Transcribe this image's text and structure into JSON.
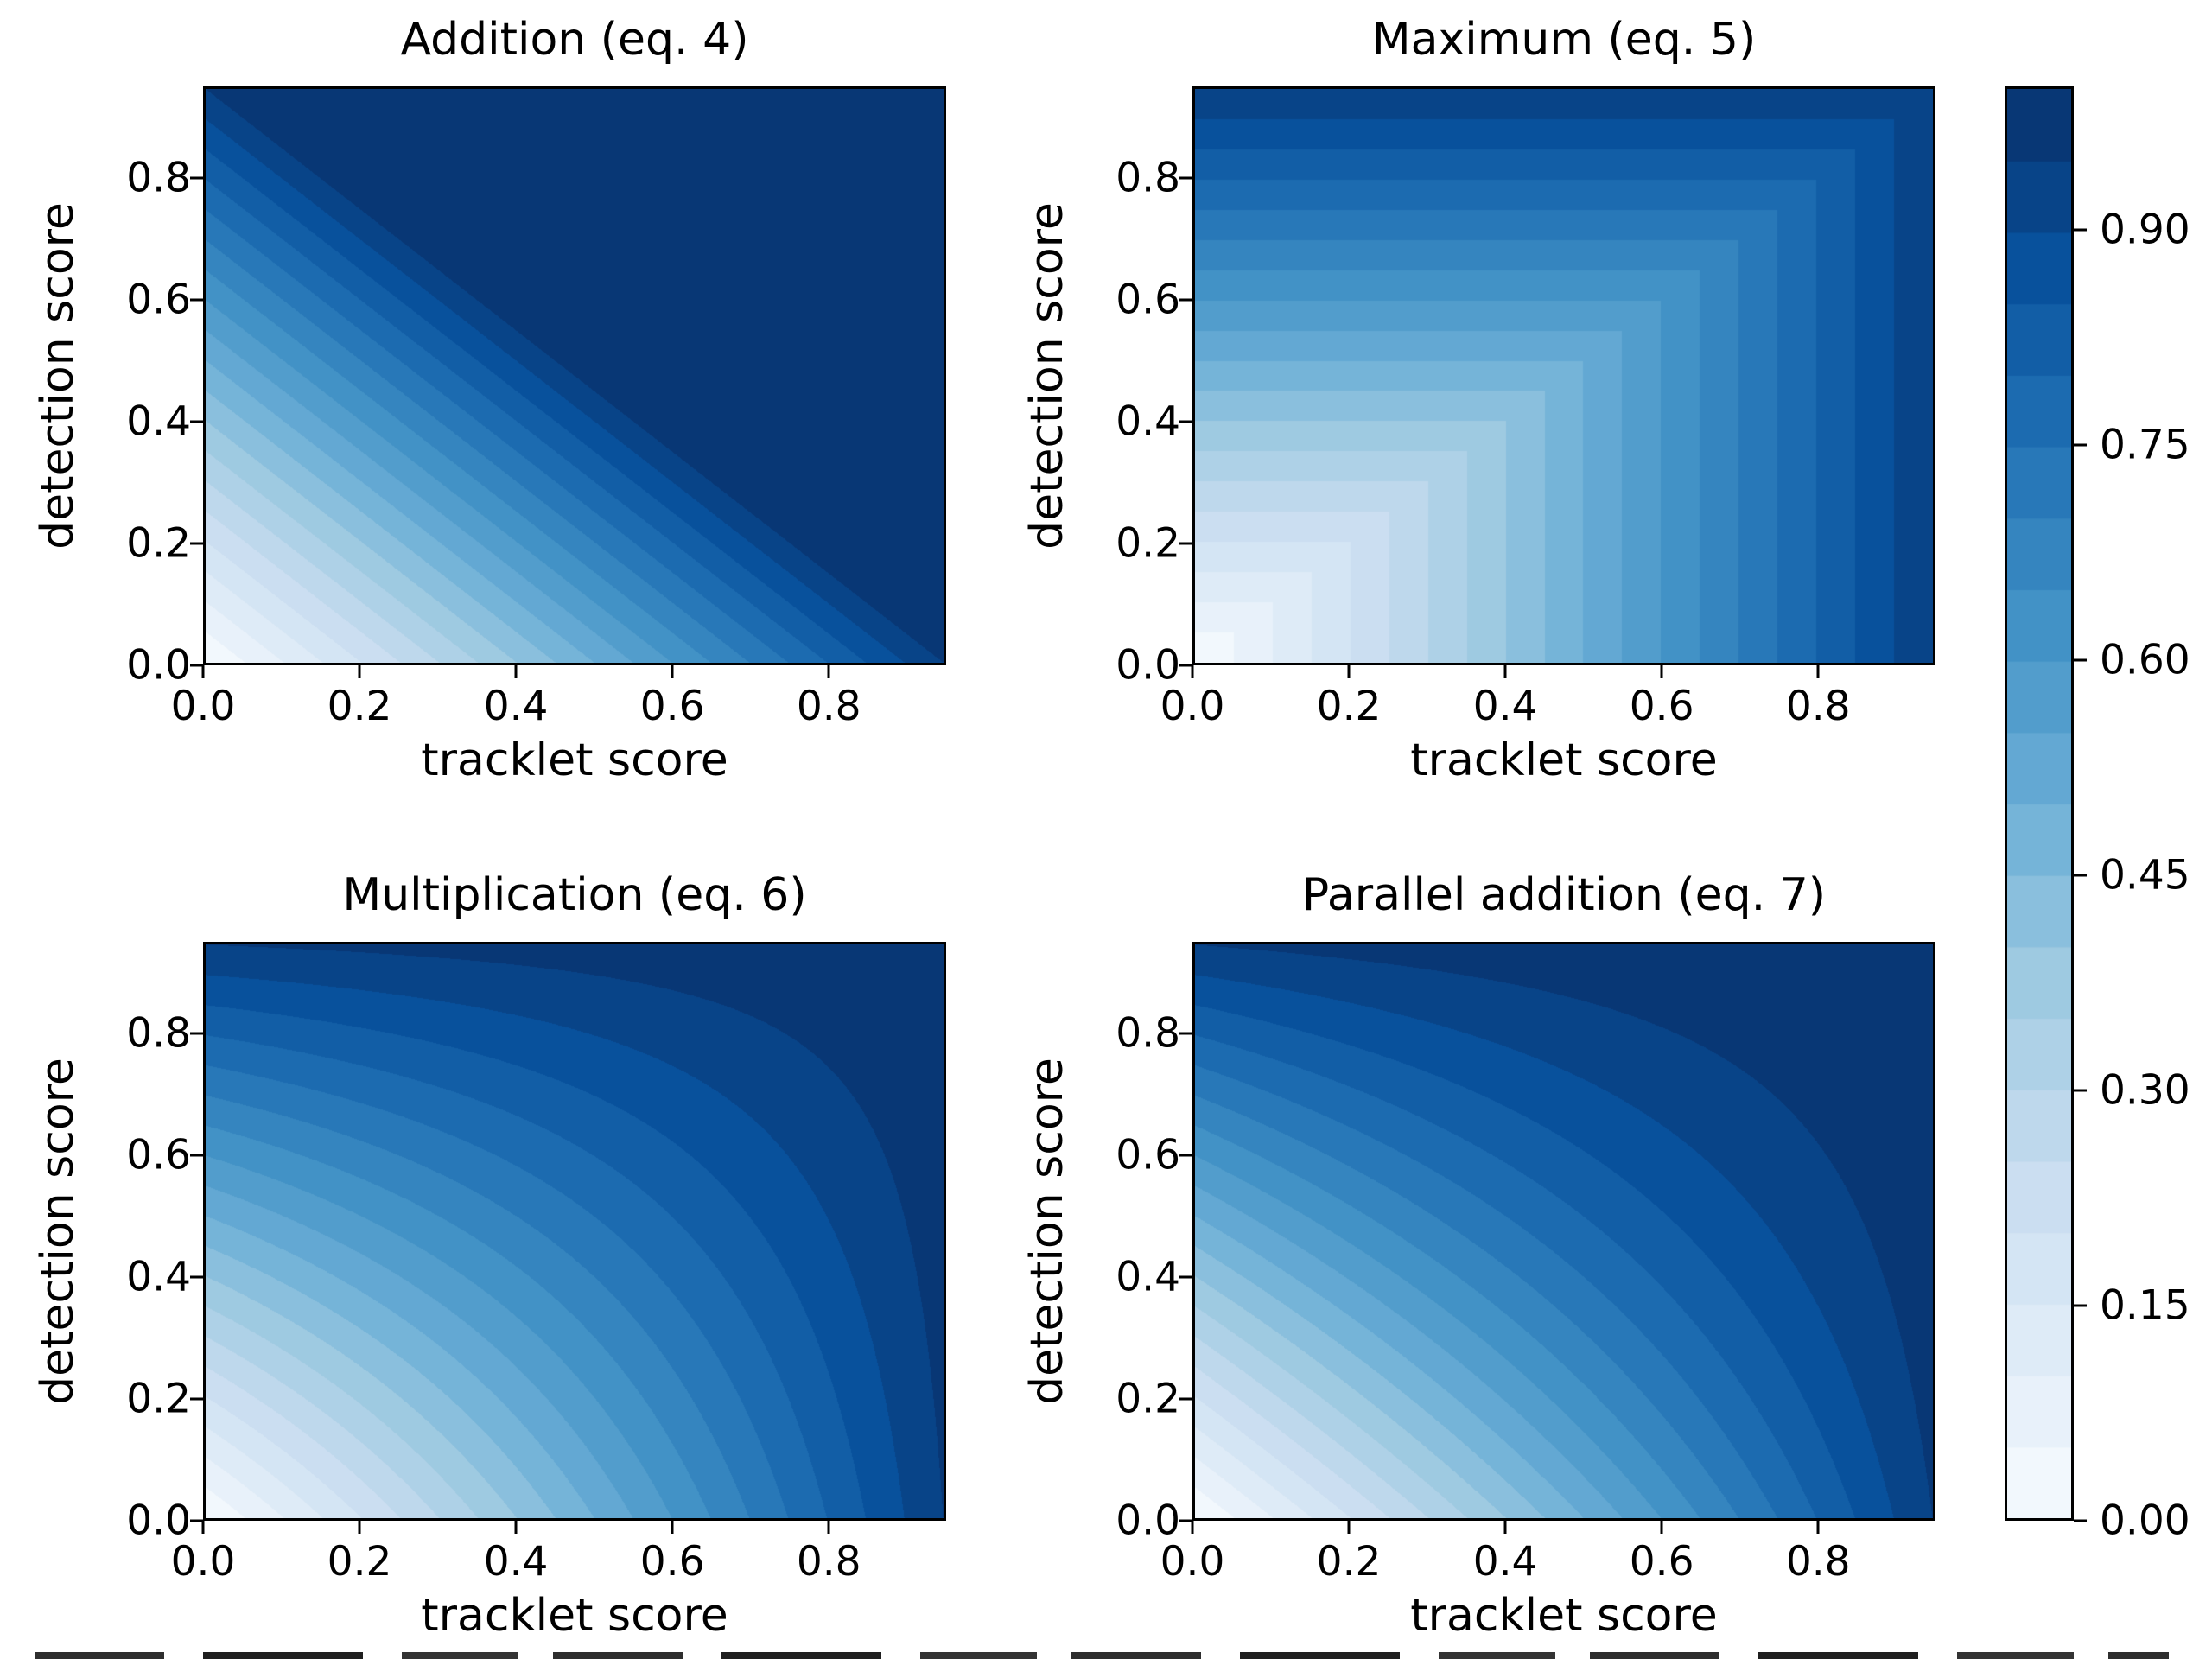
{
  "figure": {
    "background": "#ffffff",
    "axis_color": "#000000",
    "text_color": "#000000",
    "colormap": "Blues",
    "colormap_stops": [
      "#f7fbff",
      "#deebf7",
      "#c6dbef",
      "#9ecae1",
      "#6baed6",
      "#4292c6",
      "#2171b5",
      "#08519c",
      "#08306b"
    ],
    "contour_levels": {
      "min": 0,
      "max": 1,
      "step": 0.05
    }
  },
  "chart_data": [
    {
      "type": "heatmap",
      "subtype": "filled-contour",
      "title": "Addition (eq. 4)",
      "op": "addition",
      "formula": "score = min(1, tracklet + detection)",
      "xlabel": "tracklet score",
      "ylabel": "detection score",
      "x_range": [
        0,
        0.95
      ],
      "y_range": [
        0,
        0.95
      ],
      "grid": false,
      "xticks": [
        {
          "value": 0.0,
          "label": "0.0"
        },
        {
          "value": 0.2,
          "label": "0.2"
        },
        {
          "value": 0.4,
          "label": "0.4"
        },
        {
          "value": 0.6,
          "label": "0.6"
        },
        {
          "value": 0.8,
          "label": "0.8"
        }
      ],
      "yticks": [
        {
          "value": 0.0,
          "label": "0.0"
        },
        {
          "value": 0.2,
          "label": "0.2"
        },
        {
          "value": 0.4,
          "label": "0.4"
        },
        {
          "value": 0.6,
          "label": "0.6"
        },
        {
          "value": 0.8,
          "label": "0.8"
        }
      ]
    },
    {
      "type": "heatmap",
      "subtype": "filled-contour",
      "title": "Maximum (eq. 5)",
      "op": "maximum",
      "formula": "score = max(tracklet, detection)",
      "xlabel": "tracklet score",
      "ylabel": "detection score",
      "x_range": [
        0,
        0.95
      ],
      "y_range": [
        0,
        0.95
      ],
      "grid": false,
      "xticks": [
        {
          "value": 0.0,
          "label": "0.0"
        },
        {
          "value": 0.2,
          "label": "0.2"
        },
        {
          "value": 0.4,
          "label": "0.4"
        },
        {
          "value": 0.6,
          "label": "0.6"
        },
        {
          "value": 0.8,
          "label": "0.8"
        }
      ],
      "yticks": [
        {
          "value": 0.0,
          "label": "0.0"
        },
        {
          "value": 0.2,
          "label": "0.2"
        },
        {
          "value": 0.4,
          "label": "0.4"
        },
        {
          "value": 0.6,
          "label": "0.6"
        },
        {
          "value": 0.8,
          "label": "0.8"
        }
      ]
    },
    {
      "type": "heatmap",
      "subtype": "filled-contour",
      "title": "Multiplication (eq. 6)",
      "op": "multiplication",
      "formula": "score = 1 - (1 - tracklet)(1 - detection)",
      "xlabel": "tracklet score",
      "ylabel": "detection score",
      "x_range": [
        0,
        0.95
      ],
      "y_range": [
        0,
        0.95
      ],
      "grid": false,
      "xticks": [
        {
          "value": 0.0,
          "label": "0.0"
        },
        {
          "value": 0.2,
          "label": "0.2"
        },
        {
          "value": 0.4,
          "label": "0.4"
        },
        {
          "value": 0.6,
          "label": "0.6"
        },
        {
          "value": 0.8,
          "label": "0.8"
        }
      ],
      "yticks": [
        {
          "value": 0.0,
          "label": "0.0"
        },
        {
          "value": 0.2,
          "label": "0.2"
        },
        {
          "value": 0.4,
          "label": "0.4"
        },
        {
          "value": 0.6,
          "label": "0.6"
        },
        {
          "value": 0.8,
          "label": "0.8"
        }
      ]
    },
    {
      "type": "heatmap",
      "subtype": "filled-contour",
      "title": "Parallel addition (eq. 7)",
      "op": "parallel_addition",
      "formula": "score = (tracklet + detection) / (1 + tracklet * detection)",
      "xlabel": "tracklet score",
      "ylabel": "detection score",
      "x_range": [
        0,
        0.95
      ],
      "y_range": [
        0,
        0.95
      ],
      "grid": false,
      "xticks": [
        {
          "value": 0.0,
          "label": "0.0"
        },
        {
          "value": 0.2,
          "label": "0.2"
        },
        {
          "value": 0.4,
          "label": "0.4"
        },
        {
          "value": 0.6,
          "label": "0.6"
        },
        {
          "value": 0.8,
          "label": "0.8"
        }
      ],
      "yticks": [
        {
          "value": 0.0,
          "label": "0.0"
        },
        {
          "value": 0.2,
          "label": "0.2"
        },
        {
          "value": 0.4,
          "label": "0.4"
        },
        {
          "value": 0.6,
          "label": "0.6"
        },
        {
          "value": 0.8,
          "label": "0.8"
        }
      ]
    }
  ],
  "colorbar": {
    "orientation": "vertical",
    "range": [
      0,
      1
    ],
    "band_step": 0.05,
    "ticks": [
      {
        "value": 0.0,
        "label": "0.00"
      },
      {
        "value": 0.15,
        "label": "0.15"
      },
      {
        "value": 0.3,
        "label": "0.30"
      },
      {
        "value": 0.45,
        "label": "0.45"
      },
      {
        "value": 0.6,
        "label": "0.60"
      },
      {
        "value": 0.75,
        "label": "0.75"
      },
      {
        "value": 0.9,
        "label": "0.90"
      }
    ]
  }
}
